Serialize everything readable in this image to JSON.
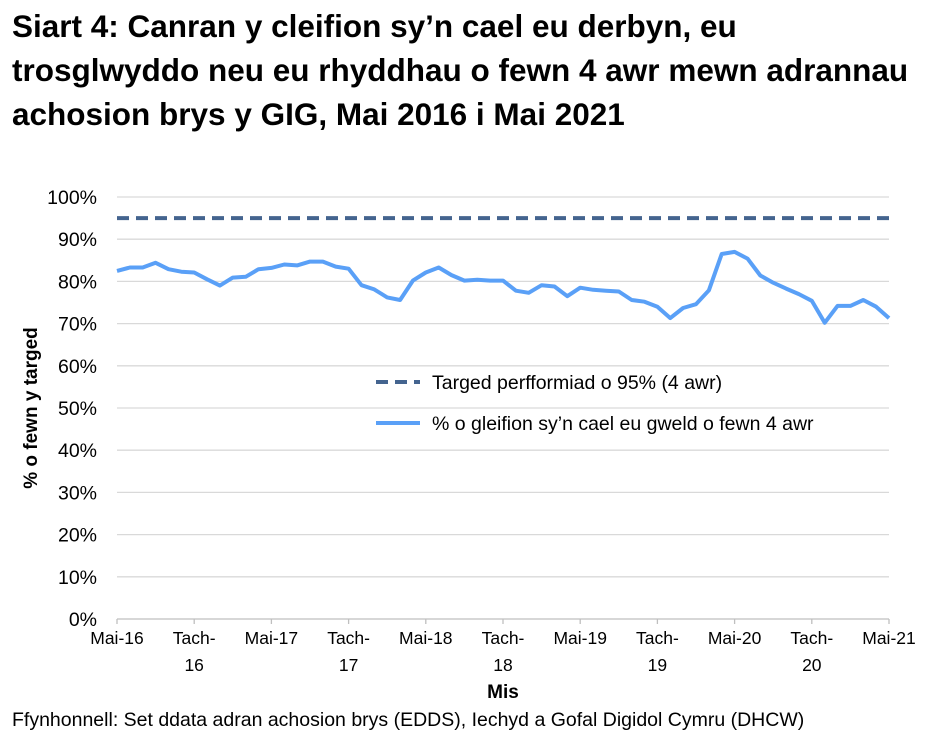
{
  "title": "Siart 4: Canran y cleifion sy’n cael eu derbyn, eu trosglwyddo neu eu rhyddhau o fewn 4 awr mewn adrannau achosion brys y GIG, Mai 2016 i Mai 2021",
  "source": "Ffynhonnell: Set ddata adran achosion brys (EDDS), Iechyd a Gofal Digidol Cymru (DHCW)",
  "chart_data": {
    "type": "line",
    "xlabel": "Mis",
    "ylabel": "% o fewn y targed",
    "ylim": [
      0,
      100
    ],
    "yticks": [
      "0%",
      "10%",
      "20%",
      "30%",
      "40%",
      "50%",
      "60%",
      "70%",
      "80%",
      "90%",
      "100%"
    ],
    "xtick_labels": [
      {
        "index": 0,
        "lines": [
          "Mai-16"
        ]
      },
      {
        "index": 6,
        "lines": [
          "Tach-",
          "16"
        ]
      },
      {
        "index": 12,
        "lines": [
          "Mai-17"
        ]
      },
      {
        "index": 18,
        "lines": [
          "Tach-",
          "17"
        ]
      },
      {
        "index": 24,
        "lines": [
          "Mai-18"
        ]
      },
      {
        "index": 30,
        "lines": [
          "Tach-",
          "18"
        ]
      },
      {
        "index": 36,
        "lines": [
          "Mai-19"
        ]
      },
      {
        "index": 42,
        "lines": [
          "Tach-",
          "19"
        ]
      },
      {
        "index": 48,
        "lines": [
          "Mai-20"
        ]
      },
      {
        "index": 54,
        "lines": [
          "Tach-",
          "20"
        ]
      },
      {
        "index": 60,
        "lines": [
          "Mai-21"
        ]
      }
    ],
    "grid": "horizontal",
    "legend_position": "center-right",
    "series": [
      {
        "name": "Targed perfformiad o 95% (4 awr)",
        "style": "dashed",
        "color": "#44648F",
        "constant": 95
      },
      {
        "name": "% o gleifion sy’n cael eu gweld o fewn 4 awr",
        "style": "solid",
        "color": "#5AA0F7",
        "values": [
          82.5,
          83.3,
          83.3,
          84.4,
          82.9,
          82.3,
          82.1,
          80.5,
          79.0,
          80.9,
          81.1,
          82.9,
          83.2,
          84.0,
          83.8,
          84.7,
          84.7,
          83.5,
          83.0,
          79.1,
          78.1,
          76.2,
          75.6,
          80.2,
          82.1,
          83.3,
          81.5,
          80.2,
          80.4,
          80.2,
          80.2,
          77.8,
          77.3,
          79.1,
          78.8,
          76.5,
          78.5,
          78.0,
          77.8,
          77.6,
          75.6,
          75.2,
          74.0,
          71.3,
          73.7,
          74.6,
          77.9,
          86.5,
          87.0,
          85.4,
          81.4,
          79.7,
          78.3,
          77.0,
          75.4,
          70.2,
          74.2,
          74.2,
          75.6,
          74.0,
          71.3
        ]
      }
    ]
  }
}
